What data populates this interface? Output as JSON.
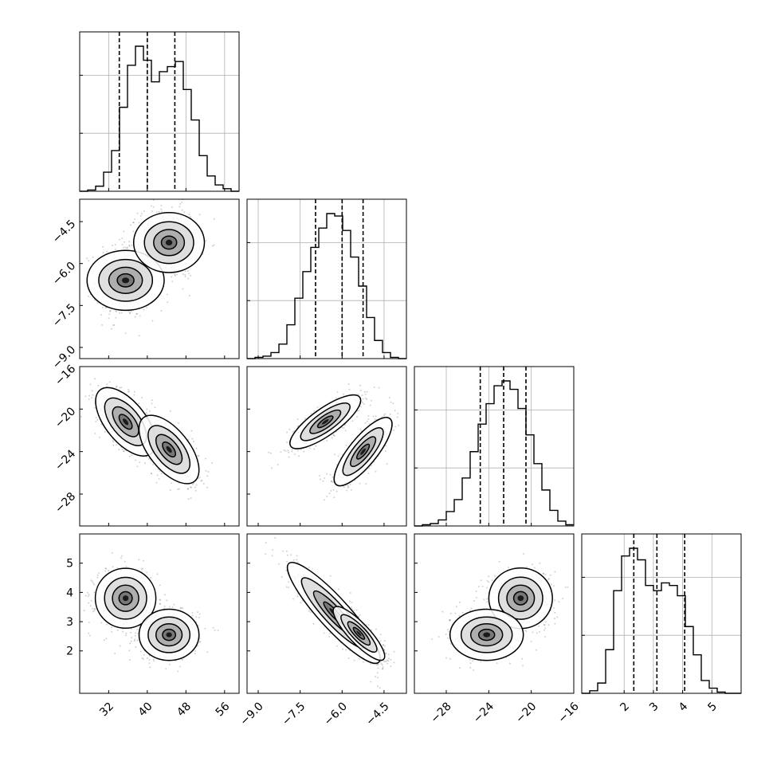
{
  "figure": {
    "background": "#ffffff",
    "line_color": "#000000",
    "grid_color": "#b0b0b0"
  },
  "chart_data": {
    "type": "corner",
    "parameters": [
      {
        "range": [
          26,
          59
        ],
        "ticks": [
          "32",
          "40",
          "48",
          "56"
        ],
        "quantiles": [
          34.2,
          40.0,
          45.7
        ]
      },
      {
        "range": [
          -9.4,
          -3.7
        ],
        "ticks": [
          "−9.0",
          "−7.5",
          "−6.0",
          "−4.5"
        ],
        "quantiles": [
          -6.95,
          -6.0,
          -5.25
        ]
      },
      {
        "range": [
          -31,
          -16
        ],
        "ticks": [
          "−28",
          "−24",
          "−20",
          "−16"
        ],
        "quantiles": [
          -24.8,
          -22.6,
          -20.5
        ]
      },
      {
        "range": [
          0.55,
          6.0
        ],
        "ticks": [
          "2",
          "3",
          "4",
          "5"
        ],
        "quantiles": [
          2.33,
          3.12,
          4.07
        ]
      }
    ],
    "histograms": [
      {
        "counts": [
          0,
          1,
          4,
          15,
          32,
          66,
          99,
          114,
          103,
          86,
          94,
          98,
          102,
          80,
          56,
          28,
          12,
          5,
          2,
          0
        ]
      },
      {
        "counts": [
          0,
          1,
          2,
          5,
          12,
          28,
          50,
          72,
          92,
          108,
          120,
          118,
          106,
          84,
          60,
          34,
          15,
          5,
          1,
          0
        ]
      },
      {
        "counts": [
          0,
          1,
          2,
          5,
          12,
          22,
          40,
          62,
          85,
          102,
          117,
          121,
          114,
          98,
          76,
          52,
          30,
          13,
          4,
          1
        ]
      },
      {
        "counts": [
          0,
          2,
          8,
          34,
          80,
          107,
          113,
          104,
          84,
          80,
          86,
          84,
          76,
          52,
          30,
          10,
          4,
          1,
          0,
          0
        ]
      }
    ],
    "pair_plots": [
      {
        "row": 1,
        "col": 0,
        "modes": [
          {
            "cx": 35.5,
            "cy": -6.6,
            "sx": 2.7,
            "sy": 0.6,
            "r": 0.0
          },
          {
            "cx": 44.5,
            "cy": -5.25,
            "sx": 2.7,
            "sy": 0.55,
            "r": 0.0
          }
        ]
      },
      {
        "row": 2,
        "col": 0,
        "modes": [
          {
            "cx": 35.5,
            "cy": -21.2,
            "sx": 2.7,
            "sy": 1.4,
            "r": -0.6
          },
          {
            "cx": 44.5,
            "cy": -23.8,
            "sx": 2.7,
            "sy": 1.4,
            "r": -0.6
          }
        ]
      },
      {
        "row": 2,
        "col": 1,
        "modes": [
          {
            "cx": -6.6,
            "cy": -21.2,
            "sx": 0.55,
            "sy": 1.1,
            "r": 0.8
          },
          {
            "cx": -5.25,
            "cy": -24.0,
            "sx": 0.45,
            "sy": 1.4,
            "r": 0.8
          }
        ]
      },
      {
        "row": 3,
        "col": 0,
        "modes": [
          {
            "cx": 35.5,
            "cy": 3.8,
            "sx": 2.7,
            "sy": 0.45,
            "r": 0.0
          },
          {
            "cx": 44.5,
            "cy": 2.55,
            "sx": 2.7,
            "sy": 0.38,
            "r": 0.0
          }
        ]
      },
      {
        "row": 3,
        "col": 1,
        "modes": [
          {
            "cx": -6.3,
            "cy": 3.3,
            "sx": 0.72,
            "sy": 0.75,
            "r": -0.9
          },
          {
            "cx": -5.4,
            "cy": 2.6,
            "sx": 0.4,
            "sy": 0.4,
            "r": -0.85
          }
        ]
      },
      {
        "row": 3,
        "col": 2,
        "modes": [
          {
            "cx": -21.0,
            "cy": 3.8,
            "sx": 1.3,
            "sy": 0.45,
            "r": 0.0
          },
          {
            "cx": -24.2,
            "cy": 2.55,
            "sx": 1.5,
            "sy": 0.38,
            "r": 0.0
          }
        ]
      }
    ],
    "scatter_color": "#000000"
  }
}
